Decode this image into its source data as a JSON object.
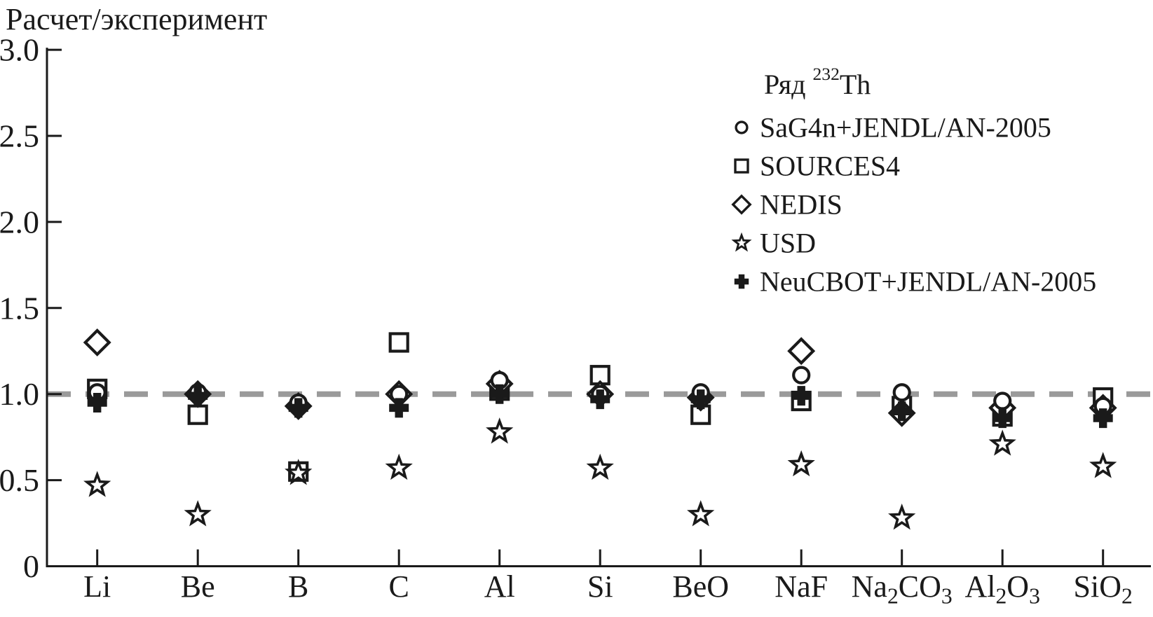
{
  "chart_data": {
    "type": "scatter",
    "ylabel": "Расчет/эксперимент",
    "ylim": [
      0,
      3.0
    ],
    "yticks": [
      0,
      0.5,
      1.0,
      1.5,
      2.0,
      2.5,
      3.0
    ],
    "ytick_labels": [
      "0",
      "0.5",
      "1.0",
      "1.5",
      "2.0",
      "2.5",
      "3.0"
    ],
    "reference_line": 1.0,
    "grid": false,
    "categories": [
      "Li",
      "Be",
      "B",
      "C",
      "Al",
      "Si",
      "BeO",
      "NaF",
      "Na2CO3",
      "Al2O3",
      "SiO2"
    ],
    "legend_title": "Ряд 232Th",
    "legend_title_parts": {
      "prefix": "Ряд ",
      "sup": "232",
      "suffix": "Th"
    },
    "legend_position": "upper right",
    "series": [
      {
        "name": "SaG4n+JENDL/AN-2005",
        "marker": "circle",
        "values": [
          1.01,
          1.01,
          0.95,
          1.0,
          1.08,
          1.0,
          1.01,
          1.11,
          1.01,
          0.96,
          0.93
        ]
      },
      {
        "name": "SOURCES4",
        "marker": "square",
        "values": [
          1.03,
          0.88,
          0.55,
          1.3,
          1.02,
          1.11,
          0.88,
          0.96,
          0.93,
          0.87,
          0.98
        ]
      },
      {
        "name": "NEDIS",
        "marker": "diamond",
        "values": [
          1.3,
          1.0,
          0.93,
          1.0,
          1.06,
          1.0,
          0.98,
          1.25,
          0.89,
          0.92,
          0.92
        ]
      },
      {
        "name": "USD",
        "marker": "star",
        "values": [
          0.47,
          0.3,
          0.54,
          0.57,
          0.78,
          0.57,
          0.3,
          0.59,
          0.28,
          0.71,
          0.58
        ]
      },
      {
        "name": "NeuCBOT+JENDL/AN-2005",
        "marker": "cross",
        "values": [
          0.95,
          0.99,
          0.92,
          0.92,
          1.0,
          0.97,
          0.97,
          0.99,
          0.9,
          0.86,
          0.86
        ]
      }
    ]
  },
  "colors": {
    "marker": "#1a1a1a",
    "axis": "#1a1a1a",
    "reference_line": "#9a9a9a",
    "background": "#ffffff"
  }
}
